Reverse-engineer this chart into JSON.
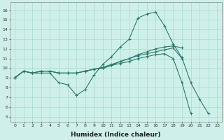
{
  "xlabel": "Humidex (Indice chaleur)",
  "xlim": [
    -0.5,
    23.5
  ],
  "ylim": [
    4.5,
    16.8
  ],
  "yticks": [
    5,
    6,
    7,
    8,
    9,
    10,
    11,
    12,
    13,
    14,
    15,
    16
  ],
  "xticks": [
    0,
    1,
    2,
    3,
    4,
    5,
    6,
    7,
    8,
    9,
    10,
    11,
    12,
    13,
    14,
    15,
    16,
    17,
    18,
    19,
    20,
    21,
    22,
    23
  ],
  "bg_color": "#cff0ea",
  "line_color": "#2a7a6e",
  "grid_color": "#a8d8ce",
  "line1_x": [
    0,
    1,
    2,
    3,
    4,
    5,
    6,
    7,
    8,
    9,
    10,
    11,
    12,
    13,
    14,
    15,
    16,
    17,
    18,
    19,
    20,
    21,
    22
  ],
  "line1_y": [
    9,
    9.7,
    9.5,
    9.5,
    9.5,
    8.5,
    8.3,
    7.2,
    7.8,
    9.3,
    10.4,
    11.2,
    12.2,
    13.0,
    15.2,
    15.6,
    15.8,
    14.4,
    12.5,
    11.1,
    8.5,
    6.8,
    5.3
  ],
  "line2_x": [
    0,
    1,
    2,
    3,
    4,
    5,
    6,
    7,
    8,
    9,
    10,
    11,
    12,
    13,
    14,
    15,
    16,
    17,
    18,
    19
  ],
  "line2_y": [
    9,
    9.7,
    9.5,
    9.7,
    9.7,
    9.5,
    9.5,
    9.5,
    9.7,
    9.9,
    10.0,
    10.3,
    10.7,
    11.0,
    11.4,
    11.7,
    12.0,
    12.2,
    12.3,
    12.1
  ],
  "line3_x": [
    0,
    1,
    2,
    3,
    4,
    5,
    6,
    7,
    8,
    9,
    10,
    11,
    12,
    13,
    14,
    15,
    16,
    17,
    18,
    19,
    20
  ],
  "line3_y": [
    9,
    9.7,
    9.5,
    9.7,
    9.7,
    9.5,
    9.5,
    9.5,
    9.7,
    9.9,
    10.0,
    10.3,
    10.5,
    10.7,
    11.0,
    11.2,
    11.4,
    11.5,
    11.0,
    8.5,
    5.3
  ],
  "line4_x": [
    0,
    1,
    2,
    3,
    4,
    5,
    6,
    7,
    8,
    9,
    10,
    11,
    12,
    13,
    14,
    15,
    16,
    17,
    18,
    19
  ],
  "line4_y": [
    9,
    9.7,
    9.5,
    9.7,
    9.7,
    9.5,
    9.5,
    9.5,
    9.7,
    9.9,
    10.1,
    10.4,
    10.7,
    11.0,
    11.3,
    11.5,
    11.7,
    11.9,
    12.1,
    11.0
  ],
  "tick_fontsize": 4.5,
  "xlabel_fontsize": 6.5,
  "marker_size": 3,
  "linewidth": 0.8
}
